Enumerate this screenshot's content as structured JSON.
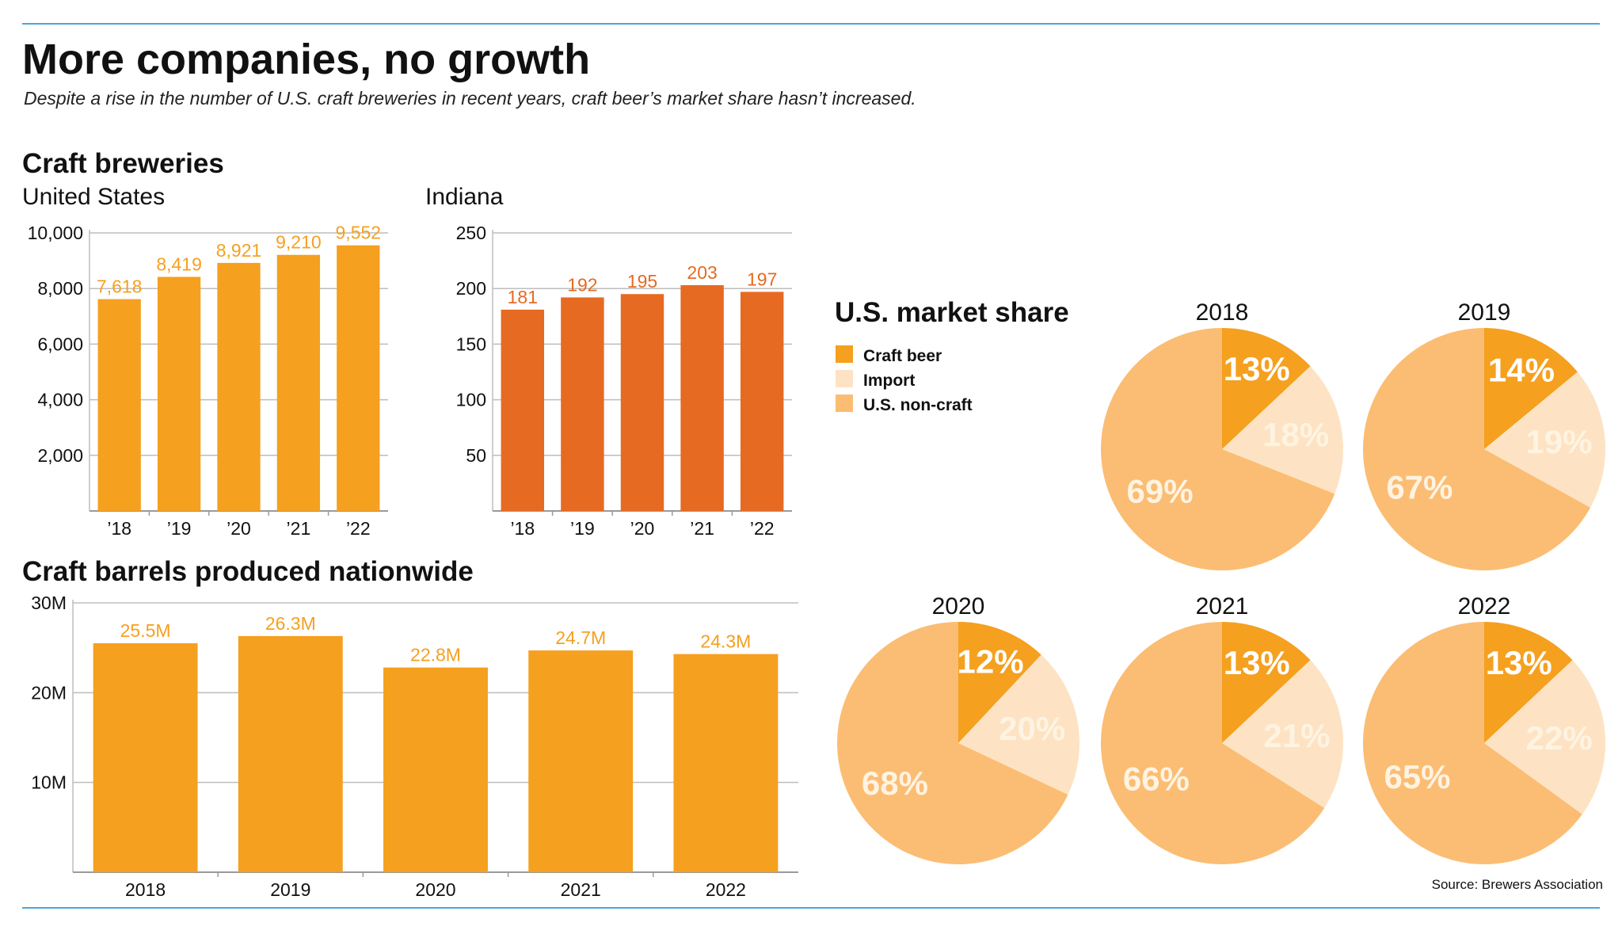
{
  "header": {
    "title": "More companies, no growth",
    "subtitle": "Despite a rise in the number of U.S. craft breweries in recent years, craft beer’s market share hasn’t increased."
  },
  "colors": {
    "craft_orange": "#f5a01f",
    "indiana_orange": "#e66a22",
    "import": "#fde3c3",
    "non_craft": "#fbbd73",
    "rule_blue": "#4aa8d8",
    "grid": "#bdbdbd",
    "pie_label_light": "#fff3e2"
  },
  "section_titles": {
    "breweries": "Craft breweries",
    "market_share": "U.S. market share",
    "barrels": "Craft barrels produced nationwide"
  },
  "legend": [
    "Craft beer",
    "Import",
    "U.S. non-craft"
  ],
  "source": "Source: Brewers Association",
  "chart_data": [
    {
      "type": "bar",
      "title": "United States",
      "categories": [
        "’18",
        "’19",
        "’20",
        "’21",
        "’22"
      ],
      "values": [
        7618,
        8419,
        8921,
        9210,
        9552
      ],
      "value_labels": [
        "7,618",
        "8,419",
        "8,921",
        "9,210",
        "9,552"
      ],
      "ylim": [
        0,
        10000
      ],
      "yticks": [
        2000,
        4000,
        6000,
        8000,
        10000
      ],
      "ytick_labels": [
        "2,000",
        "4,000",
        "6,000",
        "8,000",
        "10,000"
      ],
      "grid": true
    },
    {
      "type": "bar",
      "title": "Indiana",
      "categories": [
        "’18",
        "’19",
        "’20",
        "’21",
        "’22"
      ],
      "values": [
        181,
        192,
        195,
        203,
        197
      ],
      "value_labels": [
        "181",
        "192",
        "195",
        "203",
        "197"
      ],
      "ylim": [
        0,
        250
      ],
      "yticks": [
        50,
        100,
        150,
        200,
        250
      ],
      "ytick_labels": [
        "50",
        "100",
        "150",
        "200",
        "250"
      ],
      "grid": true
    },
    {
      "type": "bar",
      "title": "Craft barrels produced nationwide",
      "categories": [
        "2018",
        "2019",
        "2020",
        "2021",
        "2022"
      ],
      "values": [
        25.5,
        26.3,
        22.8,
        24.7,
        24.3
      ],
      "value_labels": [
        "25.5M",
        "26.3M",
        "22.8M",
        "24.7M",
        "24.3M"
      ],
      "ylim": [
        0,
        30
      ],
      "yticks": [
        10,
        20,
        30
      ],
      "ytick_labels": [
        "10M",
        "20M",
        "30M"
      ],
      "grid": true
    },
    {
      "type": "pie",
      "title": "U.S. market share",
      "legend": [
        "Craft beer",
        "Import",
        "U.S. non-craft"
      ],
      "pies": [
        {
          "year": "2018",
          "values": [
            13,
            18,
            69
          ],
          "labels": [
            "13%",
            "18%",
            "69%"
          ]
        },
        {
          "year": "2019",
          "values": [
            14,
            19,
            67
          ],
          "labels": [
            "14%",
            "19%",
            "67%"
          ]
        },
        {
          "year": "2020",
          "values": [
            12,
            20,
            68
          ],
          "labels": [
            "12%",
            "20%",
            "68%"
          ]
        },
        {
          "year": "2021",
          "values": [
            13,
            21,
            66
          ],
          "labels": [
            "13%",
            "21%",
            "66%"
          ]
        },
        {
          "year": "2022",
          "values": [
            13,
            22,
            65
          ],
          "labels": [
            "13%",
            "22%",
            "65%"
          ]
        }
      ]
    }
  ]
}
